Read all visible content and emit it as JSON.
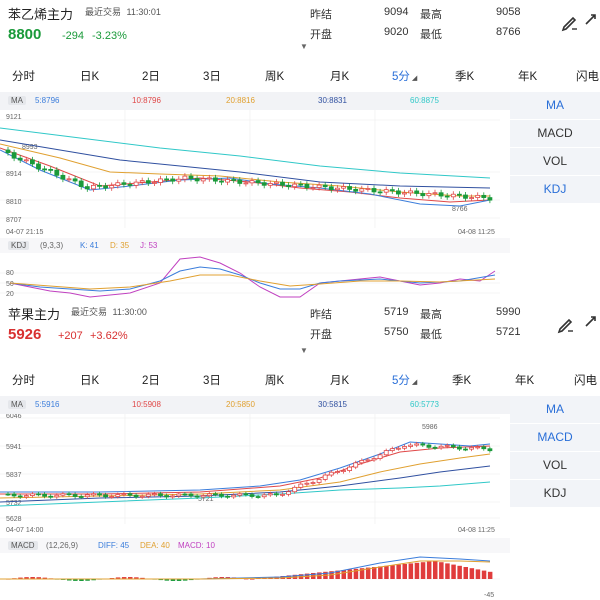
{
  "panels": [
    {
      "title": "苯乙烯主力",
      "last_trade_label": "最近交易",
      "last_trade_time": "11:30:01",
      "price": "8800",
      "change": "-294",
      "change_pct": "-3.23%",
      "direction": "down",
      "stats": {
        "prev_close_label": "昨结",
        "prev_close": "9094",
        "high_label": "最高",
        "high": "9058",
        "open_label": "开盘",
        "open": "9020",
        "low_label": "最低",
        "low": "8766"
      },
      "tabs": [
        "分时",
        "日K",
        "2日",
        "3日",
        "周K",
        "月K",
        "5分",
        "季K",
        "年K",
        "闪电"
      ],
      "active_tab": 6,
      "ma": {
        "tag": "MA",
        "items": [
          {
            "label": "5:8796",
            "color": "#3b7ddb"
          },
          {
            "label": "10:8796",
            "color": "#e04848"
          },
          {
            "label": "20:8816",
            "color": "#e0a030"
          },
          {
            "label": "30:8831",
            "color": "#3050a0"
          },
          {
            "label": "60:8875",
            "color": "#30c8c8"
          }
        ]
      },
      "side_buttons": [
        "MA",
        "MACD",
        "VOL",
        "KDJ"
      ],
      "active_side": [
        0,
        3
      ],
      "y_ticks": [
        "9121",
        "8914",
        "8810",
        "8707"
      ],
      "annotations": [
        "8993",
        "8766"
      ],
      "x_labels": [
        "04-07 21:15",
        "04-08 11:25"
      ],
      "indicator": {
        "tag": "KDJ",
        "params": "(9,3,3)",
        "items": [
          {
            "label": "K: 41",
            "color": "#3b7ddb"
          },
          {
            "label": "D: 35",
            "color": "#e0a030"
          },
          {
            "label": "J: 53",
            "color": "#c040c0"
          }
        ],
        "y_ticks": [
          "80",
          "50",
          "20"
        ]
      }
    },
    {
      "title": "苹果主力",
      "last_trade_label": "最近交易",
      "last_trade_time": "11:30:00",
      "price": "5926",
      "change": "+207",
      "change_pct": "+3.62%",
      "direction": "up",
      "stats": {
        "prev_close_label": "昨结",
        "prev_close": "5719",
        "high_label": "最高",
        "high": "5990",
        "open_label": "开盘",
        "open": "5750",
        "low_label": "最低",
        "low": "5721"
      },
      "tabs": [
        "分时",
        "日K",
        "2日",
        "3日",
        "周K",
        "月K",
        "5分",
        "季K",
        "年K",
        "闪电"
      ],
      "active_tab": 6,
      "ma": {
        "tag": "MA",
        "items": [
          {
            "label": "5:5916",
            "color": "#3b7ddb"
          },
          {
            "label": "10:5908",
            "color": "#e04848"
          },
          {
            "label": "20:5850",
            "color": "#e0a030"
          },
          {
            "label": "30:5815",
            "color": "#3050a0"
          },
          {
            "label": "60:5773",
            "color": "#30c8c8"
          }
        ]
      },
      "side_buttons": [
        "MA",
        "MACD",
        "VOL",
        "KDJ"
      ],
      "active_side": [
        0,
        1
      ],
      "y_ticks": [
        "6046",
        "5941",
        "5837",
        "5732",
        "5628"
      ],
      "annotations": [
        "5986",
        "5721"
      ],
      "x_labels": [
        "04-07 14:00",
        "04-08 11:25"
      ],
      "indicator": {
        "tag": "MACD",
        "params": "(12,26,9)",
        "items": [
          {
            "label": "DIFF: 45",
            "color": "#3b7ddb"
          },
          {
            "label": "DEA: 40",
            "color": "#e0a030"
          },
          {
            "label": "MACD: 10",
            "color": "#c040c0"
          }
        ],
        "y_ticks": [
          "-45"
        ]
      }
    }
  ]
}
